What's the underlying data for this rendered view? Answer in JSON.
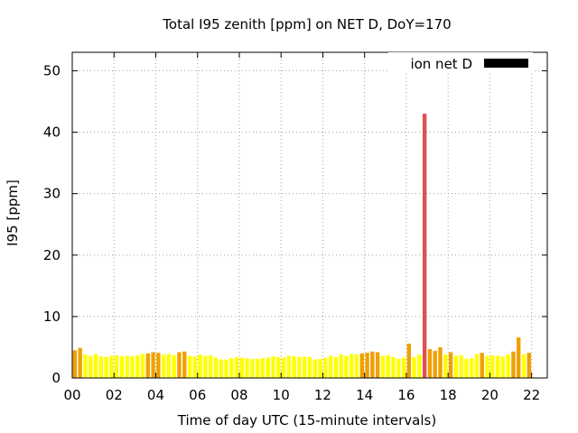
{
  "chart_data": {
    "type": "bar",
    "title": "Total I95 zenith [ppm] on NET D, DoY=170",
    "xlabel": "Time of day UTC (15-minute intervals)",
    "ylabel": "I95 [ppm]",
    "legend": {
      "label": "ion net D",
      "color": "#000000",
      "position": "top-right"
    },
    "xlim": [
      0,
      22.75
    ],
    "ylim": [
      0,
      53
    ],
    "x_ticks": [
      "00",
      "02",
      "04",
      "06",
      "08",
      "10",
      "12",
      "14",
      "16",
      "18",
      "20",
      "22"
    ],
    "y_ticks": [
      0,
      10,
      20,
      30,
      40,
      50
    ],
    "grid": true,
    "bar_interval_hours": 0.25,
    "color_scale": {
      "low": "#ffff00",
      "mid": "#f0a000",
      "high": "#e05050"
    },
    "values": [
      4.5,
      4.9,
      3.8,
      3.6,
      3.9,
      3.5,
      3.4,
      3.6,
      3.7,
      3.5,
      3.6,
      3.5,
      3.7,
      3.9,
      4.0,
      4.2,
      4.1,
      3.8,
      3.9,
      3.7,
      4.2,
      4.3,
      3.6,
      3.5,
      3.8,
      3.6,
      3.7,
      3.3,
      3.0,
      3.0,
      3.2,
      3.4,
      3.3,
      3.2,
      3.1,
      3.1,
      3.2,
      3.3,
      3.5,
      3.4,
      3.3,
      3.6,
      3.5,
      3.4,
      3.5,
      3.4,
      3.0,
      3.1,
      3.3,
      3.6,
      3.4,
      3.8,
      3.6,
      3.9,
      3.8,
      4.0,
      4.1,
      4.3,
      4.2,
      3.6,
      3.7,
      3.4,
      3.1,
      3.3,
      5.6,
      3.4,
      3.8,
      43.0,
      4.7,
      4.4,
      5.0,
      3.8,
      4.2,
      3.6,
      3.7,
      3.1,
      3.2,
      3.9,
      4.1,
      3.6,
      3.7,
      3.6,
      3.5,
      3.8,
      4.3,
      6.6,
      3.9,
      4.1
    ]
  }
}
